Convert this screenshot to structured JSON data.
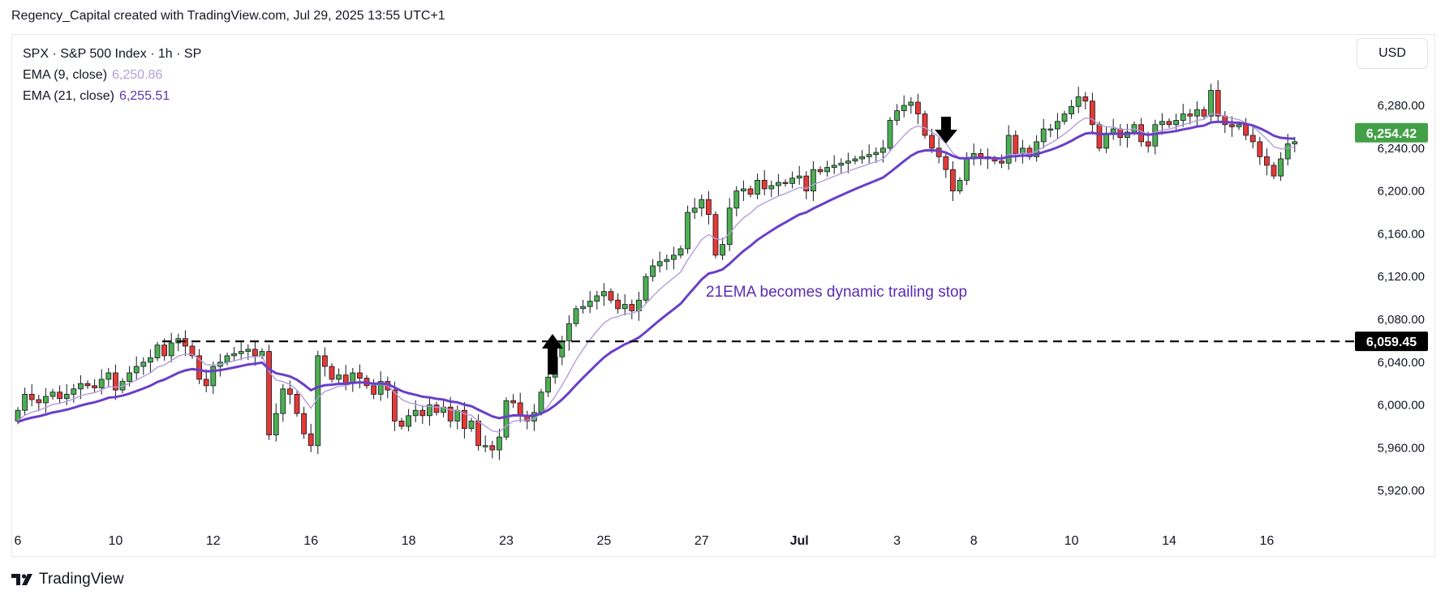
{
  "header": {
    "attribution": "Regency_Capital created with TradingView.com, Jul 29, 2025 13:55 UTC+1"
  },
  "legend": {
    "symbol": "SPX · S&P 500 Index · 1h · SP",
    "ema9_label": "EMA (9, close)",
    "ema9_value": "6,250.86",
    "ema21_label": "EMA (21, close)",
    "ema21_value": "6,255.51"
  },
  "currency": "USD",
  "annotation": "21EMA becomes dynamic trailing stop",
  "footer": {
    "brand": "TradingView"
  },
  "colors": {
    "up": "#4caf50",
    "down": "#e53935",
    "ema9": "#b39ddb",
    "ema21": "#6a3fc9",
    "price_badge": "#43a047",
    "level_badge": "#000000"
  },
  "chart_data": {
    "type": "candlestick",
    "ylim": [
      5905,
      6305
    ],
    "y_ticks": [
      "5,920.00",
      "5,960.00",
      "6,000.00",
      "6,040.00",
      "6,080.00",
      "6,120.00",
      "6,160.00",
      "6,200.00",
      "6,240.00",
      "6,280.00"
    ],
    "y_tick_values": [
      5920,
      5960,
      6000,
      6040,
      6080,
      6120,
      6160,
      6200,
      6240,
      6280
    ],
    "x_labels": [
      "6",
      "10",
      "12",
      "16",
      "18",
      "23",
      "25",
      "27",
      "Jul",
      "3",
      "8",
      "10",
      "14",
      "16"
    ],
    "x_label_index": [
      0,
      14,
      28,
      42,
      56,
      70,
      84,
      98,
      112,
      126,
      137,
      151,
      165,
      179
    ],
    "closes": [
      5995,
      6010,
      6005,
      6002,
      6008,
      6012,
      6006,
      6010,
      6015,
      6020,
      6018,
      6016,
      6024,
      6030,
      6014,
      6022,
      6030,
      6036,
      6040,
      6044,
      6056,
      6046,
      6058,
      6062,
      6055,
      6046,
      6024,
      6018,
      6036,
      6040,
      6046,
      6048,
      6050,
      6052,
      6046,
      6050,
      5972,
      5992,
      6015,
      6010,
      5992,
      5973,
      5962,
      6046,
      6036,
      6024,
      6028,
      6020,
      6030,
      6025,
      6018,
      6010,
      6022,
      6014,
      5985,
      5980,
      5990,
      5995,
      5990,
      6000,
      5993,
      5998,
      5985,
      5995,
      5978,
      5985,
      5962,
      5962,
      5958,
      5970,
      6004,
      6002,
      5990,
      5985,
      5993,
      6012,
      6026,
      6045,
      6060,
      6076,
      6090,
      6092,
      6097,
      6102,
      6106,
      6098,
      6090,
      6094,
      6088,
      6098,
      6120,
      6130,
      6134,
      6136,
      6140,
      6146,
      6180,
      6184,
      6192,
      6178,
      6140,
      6150,
      6184,
      6200,
      6202,
      6197,
      6210,
      6202,
      6205,
      6208,
      6207,
      6212,
      6214,
      6200,
      6220,
      6218,
      6222,
      6224,
      6226,
      6228,
      6230,
      6232,
      6234,
      6236,
      6240,
      6266,
      6275,
      6280,
      6283,
      6272,
      6252,
      6240,
      6232,
      6220,
      6200,
      6210,
      6230,
      6235,
      6232,
      6230,
      6228,
      6226,
      6252,
      6235,
      6240,
      6232,
      6246,
      6258,
      6258,
      6265,
      6272,
      6279,
      6288,
      6284,
      6262,
      6240,
      6254,
      6258,
      6250,
      6255,
      6262,
      6246,
      6242,
      6262,
      6265,
      6262,
      6266,
      6272,
      6270,
      6276,
      6270,
      6294,
      6270,
      6262,
      6260,
      6262,
      6252,
      6246,
      6232,
      6224,
      6214,
      6230,
      6244,
      6246
    ],
    "ema9_last": 6250.86,
    "ema21_last": 6255.51,
    "last_price": "6,254.42",
    "last_price_value": 6254.42,
    "horizontal_level": "6,059.45",
    "horizontal_level_value": 6059.45
  }
}
